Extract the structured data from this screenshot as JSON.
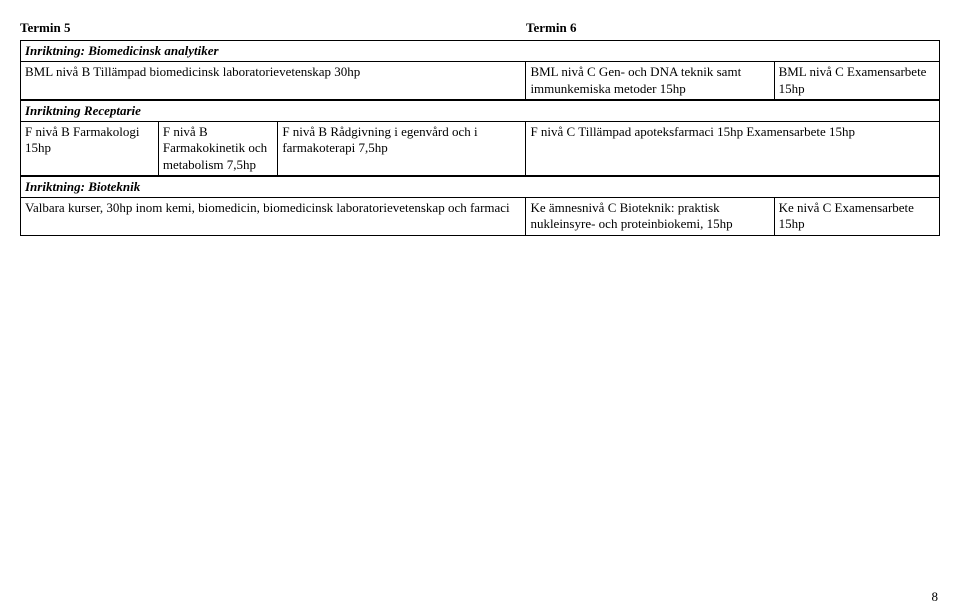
{
  "terms": {
    "t5": "Termin 5",
    "t6": "Termin 6"
  },
  "sections": {
    "analytiker": {
      "header": "Inriktning: Biomedicinsk analytiker",
      "col1": "BML nivå B\nTillämpad biomedicinsk laboratorievetenskap 30hp",
      "col4": "BML nivå C\nGen- och  DNA teknik samt immunkemiska metoder 15hp",
      "col5": "BML nivå C\nExamensarbete 15hp"
    },
    "receptarie": {
      "header": "Inriktning Receptarie",
      "col1": "F nivå B\nFarmakologi 15hp",
      "col2": "F nivå B\nFarmakokinetik och metabolism 7,5hp",
      "col3": "F nivå B\nRådgivning i egenvård och i farmakoterapi 7,5hp",
      "col4": "F nivå C\nTillämpad apoteksfarmaci 15hp\nExamensarbete 15hp"
    },
    "bioteknik": {
      "header": "Inriktning: Bioteknik",
      "col1": "Valbara kurser, 30hp inom kemi, biomedicin, biomedicinsk laboratorievetenskap och farmaci",
      "col4": "Ke ämnesnivå C\nBioteknik: praktisk nukleinsyre- och proteinbiokemi, 15hp",
      "col5": "Ke nivå C\nExamensarbete 15hp"
    }
  },
  "pageNumber": "8"
}
